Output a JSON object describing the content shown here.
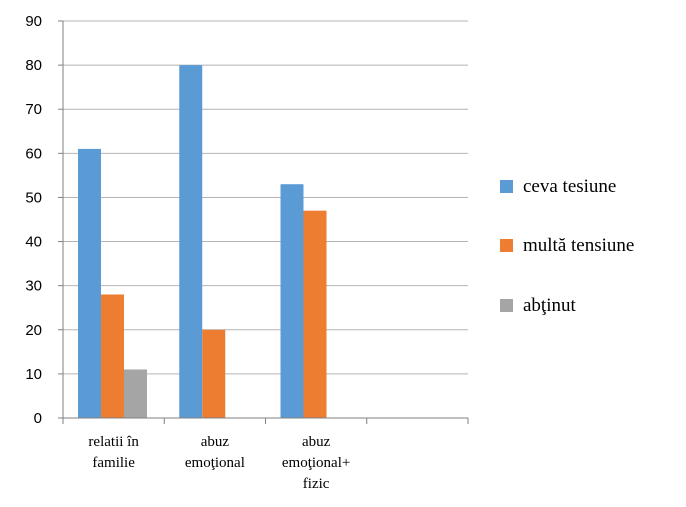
{
  "chart_data": {
    "type": "bar",
    "categories": [
      [
        "relatii în",
        "familie"
      ],
      [
        "abuz",
        "emoţional"
      ],
      [
        "abuz",
        "emoţional+",
        "fizic"
      ],
      [
        ""
      ]
    ],
    "series": [
      {
        "name": "ceva tesiune",
        "color": "#5b9bd5",
        "values": [
          61,
          80,
          53,
          null
        ]
      },
      {
        "name": "multă tensiune",
        "color": "#ed7d31",
        "values": [
          28,
          20,
          47,
          null
        ]
      },
      {
        "name": "abţinut",
        "color": "#a5a5a5",
        "values": [
          11,
          null,
          null,
          null
        ]
      }
    ],
    "ylim": [
      0,
      90
    ],
    "yticks": [
      0,
      10,
      20,
      30,
      40,
      50,
      60,
      70,
      80,
      90
    ],
    "grid": true,
    "legend_position": "right",
    "title": "",
    "xlabel": "",
    "ylabel": ""
  }
}
